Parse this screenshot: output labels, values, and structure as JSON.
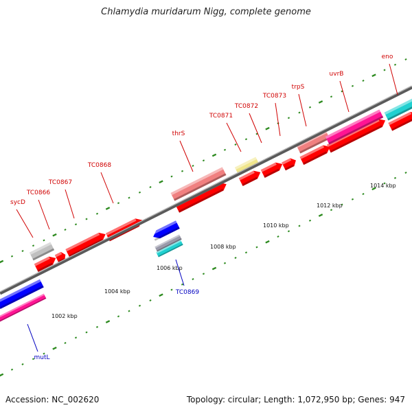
{
  "title": "Chlamydia muridarum Nigg, complete genome",
  "footer": {
    "accession": "Accession: NC_002620",
    "summary": "Topology: circular; Length: 1,072,950 bp; Genes: 947"
  },
  "colors": {
    "gene_forward": "#ff0000",
    "gene_reverse": "#0000ff",
    "backbone": "#888888",
    "tick": "#2e8b20",
    "rna": "#f08080",
    "hypothetical": "#c0c0c0",
    "pink_category": "#ff1493",
    "yellow_category": "#f0e68c",
    "cyan_category": "#20d0d0"
  },
  "ruler": {
    "labels": [
      "1002 kbp",
      "1004 kbp",
      "1006 kbp",
      "1008 kbp",
      "1010 kbp",
      "1012 kbp",
      "1014 kbp"
    ]
  },
  "gene_labels": {
    "forward": [
      "sycD",
      "TC0866",
      "TC0867",
      "TC0868",
      "thrS",
      "TC0871",
      "TC0872",
      "TC0873",
      "trpS",
      "uvrB",
      "eno"
    ],
    "reverse": [
      "mutL",
      "TC0869"
    ]
  }
}
